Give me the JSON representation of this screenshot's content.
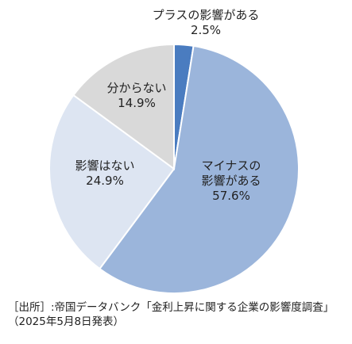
{
  "chart_data": {
    "type": "pie",
    "start": "top",
    "direction": "clockwise",
    "slices": [
      {
        "label_lines": [
          "プラスの影響がある",
          "2.5%"
        ],
        "value": 2.5,
        "color": "#4a7cc0"
      },
      {
        "label_lines": [
          "マイナスの",
          "影響がある",
          "57.6%"
        ],
        "value": 57.6,
        "color": "#9bb5db"
      },
      {
        "label_lines": [
          "影響はない",
          "24.9%"
        ],
        "value": 24.9,
        "color": "#dde5f2"
      },
      {
        "label_lines": [
          "分からない",
          "14.9%"
        ],
        "value": 14.9,
        "color": "#d9d9d9"
      }
    ]
  },
  "source": {
    "line1": "［出所］:帝国データバンク「金利上昇に関する企業の影響度調査」",
    "line2": "（2025年5月8日発表）"
  }
}
